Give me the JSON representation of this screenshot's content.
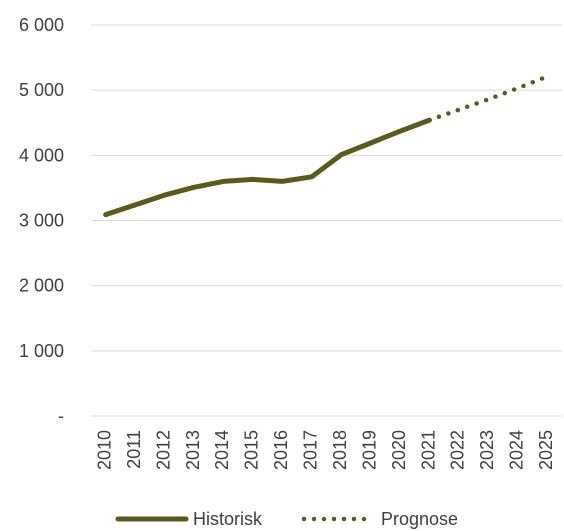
{
  "chart_data": {
    "type": "line",
    "title": "",
    "xlabel": "",
    "ylabel": "",
    "x": [
      "2010",
      "2011",
      "2012",
      "2013",
      "2014",
      "2015",
      "2016",
      "2017",
      "2018",
      "2019",
      "2020",
      "2021",
      "2022",
      "2023",
      "2024",
      "2025"
    ],
    "y_tick_values": [
      0,
      1000,
      2000,
      3000,
      4000,
      5000,
      6000
    ],
    "y_tick_labels": [
      "-",
      "1 000",
      "2 000",
      "3 000",
      "4 000",
      "5 000",
      "6 000"
    ],
    "ylim": [
      0,
      6000
    ],
    "grid": "horizontal",
    "legend_position": "bottom",
    "series": [
      {
        "name": "Historisk",
        "style": "solid",
        "color": "#5a5a1e",
        "x": [
          "2010",
          "2011",
          "2012",
          "2013",
          "2014",
          "2015",
          "2016",
          "2017",
          "2018",
          "2019",
          "2020",
          "2021"
        ],
        "values": [
          3090,
          3240,
          3390,
          3510,
          3600,
          3630,
          3600,
          3670,
          4010,
          4190,
          4370,
          4540
        ]
      },
      {
        "name": "Prognose",
        "style": "dotted",
        "color": "#5a5a1e",
        "x": [
          "2021",
          "2022",
          "2023",
          "2024",
          "2025"
        ],
        "values": [
          4540,
          4700,
          4860,
          5030,
          5210
        ]
      }
    ]
  },
  "colors": {
    "gridline": "#d9d9d9",
    "text": "#404040",
    "series": "#5a5a1e"
  }
}
